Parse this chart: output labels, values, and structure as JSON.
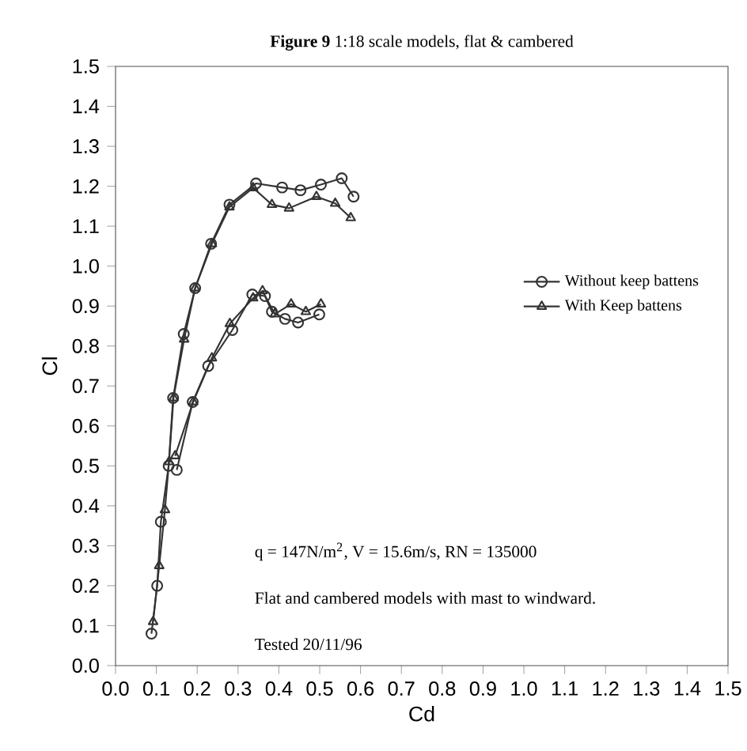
{
  "chart_data": {
    "type": "line",
    "title": "**Figure 9** 1:18 scale models, flat & cambered",
    "xlabel": "Cd",
    "ylabel": "Cl",
    "xlim": [
      0,
      1.5
    ],
    "ylim": [
      0,
      1.5
    ],
    "xticks": [
      {
        "value": 0,
        "label": "0.0"
      },
      {
        "value": 0.1,
        "label": "0.1"
      },
      {
        "value": 0.2,
        "label": "0.2"
      },
      {
        "value": 0.3,
        "label": "0.3"
      },
      {
        "value": 0.4,
        "label": "0.4"
      },
      {
        "value": 0.5,
        "label": "0.5"
      },
      {
        "value": 0.6,
        "label": "0.6"
      },
      {
        "value": 0.7,
        "label": "0.7"
      },
      {
        "value": 0.8,
        "label": "0.8"
      },
      {
        "value": 0.9,
        "label": "0.9"
      },
      {
        "value": 1.0,
        "label": "1.0"
      },
      {
        "value": 1.1,
        "label": "1.1"
      },
      {
        "value": 1.2,
        "label": "1.2"
      },
      {
        "value": 1.3,
        "label": "1.3"
      },
      {
        "value": 1.4,
        "label": "1.4"
      },
      {
        "value": 1.5,
        "label": "1.5"
      }
    ],
    "yticks": [
      {
        "value": 0,
        "label": "0.0"
      },
      {
        "value": 0.1,
        "label": "0.1"
      },
      {
        "value": 0.2,
        "label": "0.2"
      },
      {
        "value": 0.3,
        "label": "0.3"
      },
      {
        "value": 0.4,
        "label": "0.4"
      },
      {
        "value": 0.5,
        "label": "0.5"
      },
      {
        "value": 0.6,
        "label": "0.6"
      },
      {
        "value": 0.7,
        "label": "0.7"
      },
      {
        "value": 0.8,
        "label": "0.8"
      },
      {
        "value": 0.9,
        "label": "0.9"
      },
      {
        "value": 1.0,
        "label": "1.0"
      },
      {
        "value": 1.1,
        "label": "1.1"
      },
      {
        "value": 1.2,
        "label": "1.2"
      },
      {
        "value": 1.3,
        "label": "1.3"
      },
      {
        "value": 1.4,
        "label": "1.4"
      },
      {
        "value": 1.5,
        "label": "1.5"
      }
    ],
    "legend": "right",
    "series": [
      {
        "name": "Without keep battens",
        "color": "#333333",
        "marker": "circle",
        "x": [
          0.088,
          0.102,
          0.111,
          0.13,
          0.141,
          0.167,
          0.195,
          0.234,
          0.279,
          0.344,
          0.408,
          0.453,
          0.503,
          0.554,
          0.583
        ],
        "values": [
          0.08,
          0.2,
          0.36,
          0.5,
          0.67,
          0.83,
          0.945,
          1.056,
          1.154,
          1.207,
          1.197,
          1.19,
          1.204,
          1.22,
          1.174
        ]
      },
      {
        "name": "With Keep battens",
        "color": "#333333",
        "marker": "triangle",
        "x": [
          0.092,
          0.107,
          0.121,
          0.131,
          0.142,
          0.168,
          0.195,
          0.236,
          0.279,
          0.337,
          0.383,
          0.425,
          0.492,
          0.538,
          0.576
        ],
        "values": [
          0.11,
          0.25,
          0.39,
          0.51,
          0.67,
          0.817,
          0.945,
          1.056,
          1.148,
          1.196,
          1.154,
          1.145,
          1.174,
          1.157,
          1.121
        ]
      },
      {
        "color": "#333333",
        "marker": "circle",
        "x": [
          0.15,
          0.189,
          0.227,
          0.286,
          0.335,
          0.366,
          0.383,
          0.415,
          0.447,
          0.499
        ],
        "values": [
          0.49,
          0.66,
          0.75,
          0.84,
          0.929,
          0.925,
          0.886,
          0.868,
          0.859,
          0.879
        ]
      },
      {
        "color": "#333333",
        "marker": "triangle",
        "x": [
          0.146,
          0.19,
          0.236,
          0.28,
          0.337,
          0.36,
          0.39,
          0.43,
          0.466,
          0.503
        ],
        "values": [
          0.525,
          0.66,
          0.77,
          0.856,
          0.92,
          0.938,
          0.88,
          0.905,
          0.886,
          0.905
        ]
      }
    ],
    "annotations": [
      "q = 147N/m$^{2}$, V = 15.6m/s, RN = 135000",
      "Flat and cambered models with mast to windward.",
      "Tested 20/11/96"
    ]
  }
}
